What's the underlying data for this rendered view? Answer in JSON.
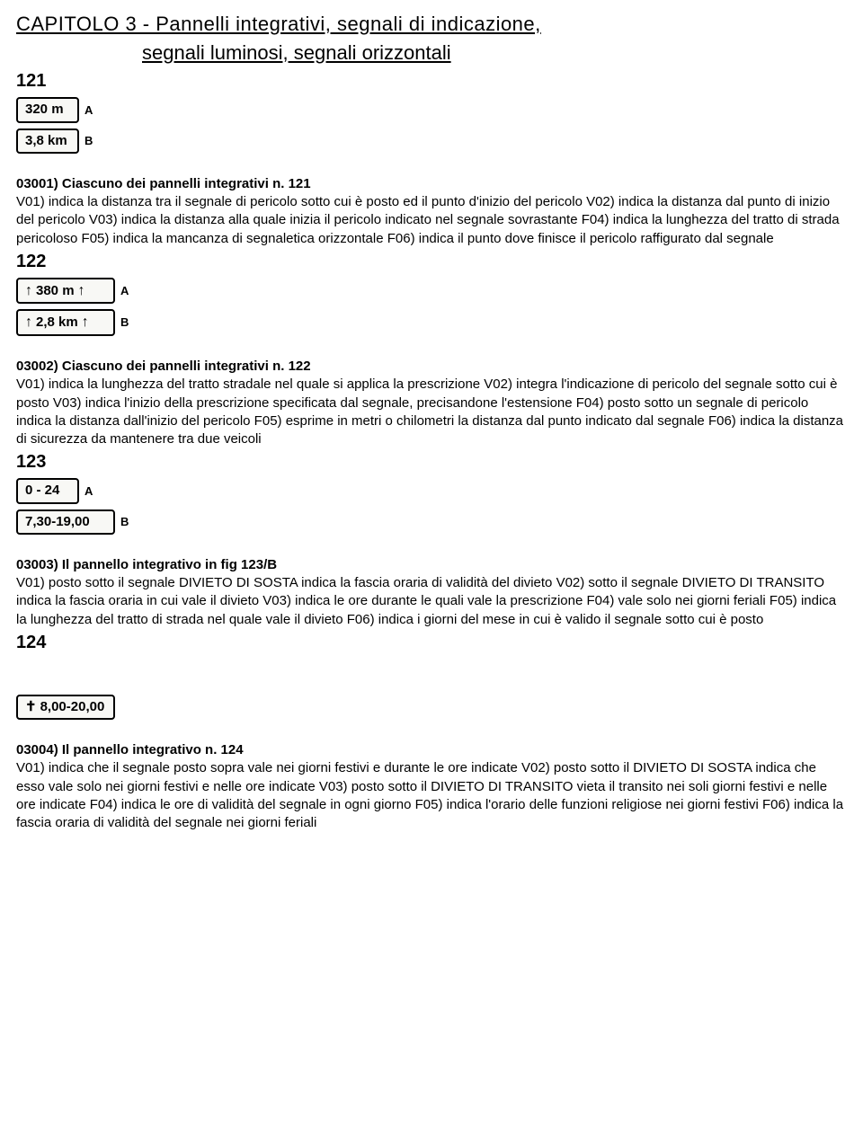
{
  "chapter": {
    "line1": "CAPITOLO 3 - Pannelli integrativi, segnali di indicazione,",
    "line2": "segnali luminosi, segnali orizzontali"
  },
  "sections": [
    {
      "fig": "121",
      "signs": [
        {
          "text": "320 m",
          "label": "A",
          "arrows": false,
          "wide": false
        },
        {
          "text": "3,8 km",
          "label": "B",
          "arrows": false,
          "wide": false
        }
      ],
      "qtitle": "03001) Ciascuno dei pannelli integrativi n. 121",
      "qbody": "V01) indica la distanza tra il segnale di pericolo sotto cui è posto ed il punto d'inizio del pericolo V02) indica la distanza dal punto di inizio del pericolo V03) indica la distanza alla quale inizia il pericolo indicato nel segnale sovrastante F04) indica la lunghezza del tratto di strada pericoloso F05) indica la mancanza di segnaletica orizzontale F06) indica il punto dove finisce il pericolo raffigurato dal segnale"
    },
    {
      "fig": "122",
      "signs": [
        {
          "text": "380 m",
          "label": "A",
          "arrows": true,
          "wide": true
        },
        {
          "text": "2,8 km",
          "label": "B",
          "arrows": true,
          "wide": true
        }
      ],
      "qtitle": "03002) Ciascuno dei pannelli integrativi n. 122",
      "qbody": "V01) indica la lunghezza del tratto stradale nel quale si applica la prescrizione V02) integra l'indicazione di pericolo del segnale sotto cui è posto V03) indica l'inizio della prescrizione specificata dal segnale, precisandone l'estensione F04) posto sotto un segnale di pericolo indica la distanza dall'inizio del pericolo F05) esprime in metri o chilometri la distanza dal punto indicato dal segnale F06) indica la distanza di sicurezza da mantenere tra due veicoli"
    },
    {
      "fig": "123",
      "signs": [
        {
          "text": "0 - 24",
          "label": "A",
          "arrows": false,
          "wide": false
        },
        {
          "text": "7,30-19,00",
          "label": "B",
          "arrows": false,
          "wide": true
        }
      ],
      "qtitle": "03003) Il pannello integrativo in fig 123/B",
      "qbody": "V01) posto sotto il segnale DIVIETO DI SOSTA indica la fascia oraria di validità del divieto V02) sotto il segnale DIVIETO DI TRANSITO indica la fascia oraria in cui vale il divieto V03) indica le ore durante le quali vale la prescrizione F04) vale solo nei giorni feriali F05) indica la lunghezza del tratto di strada nel quale vale il divieto F06) indica i giorni del mese in cui è valido il segnale sotto cui è posto"
    },
    {
      "fig": "124",
      "signs": [
        {
          "text": "8,00-20,00",
          "label": "",
          "arrows": false,
          "wide": true,
          "cross": true
        }
      ],
      "qtitle": "03004) Il pannello integrativo n. 124",
      "qbody": "V01) indica che il segnale posto sopra vale nei giorni festivi e durante le ore indicate V02) posto sotto il DIVIETO DI SOSTA indica che esso vale solo nei giorni festivi e nelle ore indicate V03) posto sotto il DIVIETO DI TRANSITO vieta il transito nei soli giorni festivi e nelle ore indicate F04) indica le ore di validità del segnale in ogni giorno F05) indica l'orario delle funzioni religiose nei giorni festivi F06) indica la fascia oraria di validità del segnale nei giorni feriali"
    }
  ]
}
